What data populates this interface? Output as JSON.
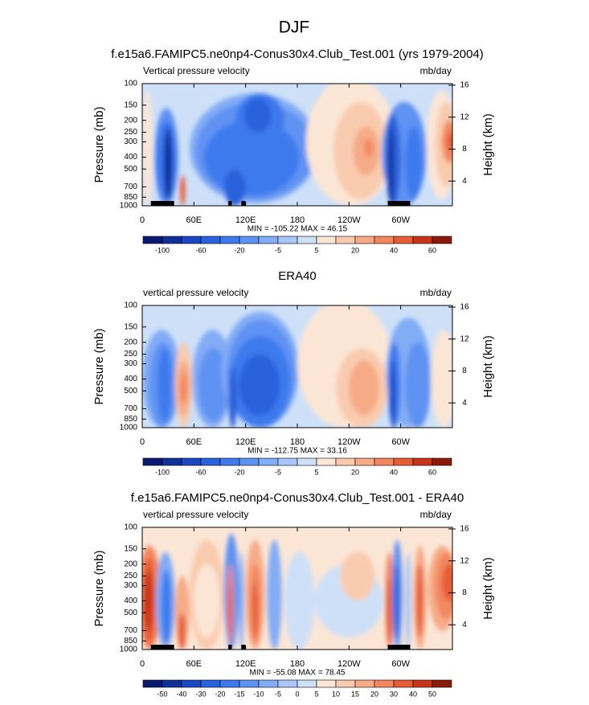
{
  "title": "DJF",
  "chart_data": [
    {
      "type": "contour",
      "title": "f.e15a6.FAMIPC5.ne0np4-Conus30x4.Club_Test.001 (yrs 1979-2004)",
      "left_label": "Vertical pressure velocity",
      "right_label": "mb/day",
      "ylabel": "Pressure (mb)",
      "y2label": "Height (km)",
      "xlim": [
        0,
        360
      ],
      "xticks": [
        0,
        {
          "value": 60,
          "label": "60E"
        },
        {
          "value": 120,
          "label": "120E"
        },
        180,
        {
          "value": 240,
          "label": "120W"
        },
        {
          "value": 300,
          "label": "60W"
        }
      ],
      "ylim": [
        1000,
        100
      ],
      "yscale": "log",
      "yticks": [
        100,
        150,
        200,
        250,
        300,
        400,
        500,
        700,
        850,
        1000
      ],
      "y2lim": [
        0.9,
        16.2
      ],
      "y2ticks": [
        4,
        8,
        12,
        16
      ],
      "stats": "MIN = -105.22  MAX =  46.15",
      "colorbar": {
        "colors": [
          "#0a1a6e",
          "#12309a",
          "#1a48c4",
          "#2a62dc",
          "#3e7aee",
          "#5e92f2",
          "#82acf6",
          "#a8c6f8",
          "#cde0f8",
          "#fbe6d6",
          "#f9cbae",
          "#f6aa86",
          "#f2865e",
          "#e65c34",
          "#c83418",
          "#8c1a0a"
        ],
        "labels": [
          -100,
          -60,
          -20,
          -5,
          5,
          20,
          40,
          60
        ]
      }
    },
    {
      "type": "contour",
      "title": "ERA40",
      "left_label": "vertical pressure velocity",
      "right_label": "mb/day",
      "ylabel": "Pressure (mb)",
      "y2label": "Height (km)",
      "xlim": [
        0,
        360
      ],
      "xticks": [
        0,
        {
          "value": 60,
          "label": "60E"
        },
        {
          "value": 120,
          "label": "120E"
        },
        180,
        {
          "value": 240,
          "label": "120W"
        },
        {
          "value": 300,
          "label": "60W"
        }
      ],
      "ylim": [
        1000,
        100
      ],
      "yscale": "log",
      "yticks": [
        100,
        150,
        200,
        250,
        300,
        400,
        500,
        700,
        850,
        1000
      ],
      "y2lim": [
        0.9,
        16.2
      ],
      "y2ticks": [
        4,
        8,
        12,
        16
      ],
      "stats": "MIN = -112.75  MAX =  33.16",
      "colorbar": {
        "colors": [
          "#0a1a6e",
          "#12309a",
          "#1a48c4",
          "#2a62dc",
          "#3e7aee",
          "#5e92f2",
          "#82acf6",
          "#a8c6f8",
          "#cde0f8",
          "#fbe6d6",
          "#f9cbae",
          "#f6aa86",
          "#f2865e",
          "#e65c34",
          "#c83418",
          "#8c1a0a"
        ],
        "labels": [
          -100,
          -60,
          -20,
          -5,
          5,
          20,
          40,
          60
        ]
      }
    },
    {
      "type": "contour",
      "title": "f.e15a6.FAMIPC5.ne0np4-Conus30x4.Club_Test.001 - ERA40",
      "left_label": "vertical pressure velocity",
      "right_label": "mb/day",
      "ylabel": "Pressure (mb)",
      "y2label": "Height (km)",
      "xlim": [
        0,
        360
      ],
      "xticks": [
        0,
        {
          "value": 60,
          "label": "60E"
        },
        {
          "value": 120,
          "label": "120E"
        },
        180,
        {
          "value": 240,
          "label": "120W"
        },
        {
          "value": 300,
          "label": "60W"
        }
      ],
      "ylim": [
        1000,
        100
      ],
      "yscale": "log",
      "yticks": [
        100,
        150,
        200,
        250,
        300,
        400,
        500,
        700,
        850,
        1000
      ],
      "y2lim": [
        0.9,
        16.2
      ],
      "y2ticks": [
        4,
        8,
        12,
        16
      ],
      "stats": "MIN = -55.08  MAX =  78.45",
      "colorbar": {
        "colors": [
          "#0a1a6e",
          "#12309a",
          "#1a48c4",
          "#2a62dc",
          "#3e7aee",
          "#5e92f2",
          "#82acf6",
          "#a8c6f8",
          "#cde0f8",
          "#fbe6d6",
          "#f9cbae",
          "#f6aa86",
          "#f2865e",
          "#e65c34",
          "#c83418",
          "#8c1a0a"
        ],
        "labels": [
          -50,
          -40,
          -30,
          -20,
          -15,
          -10,
          -5,
          0,
          5,
          10,
          15,
          20,
          30,
          40,
          50
        ]
      }
    }
  ]
}
